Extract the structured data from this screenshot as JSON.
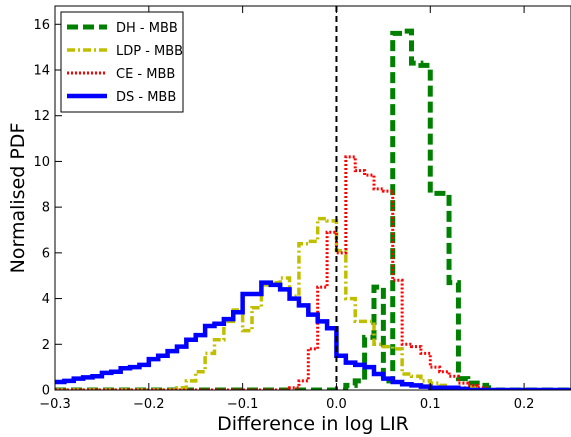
{
  "chart_data": {
    "type": "line",
    "step": true,
    "xlabel": "Difference in log LIR",
    "ylabel": "Normalised PDF",
    "xlim": [
      -0.3,
      0.25
    ],
    "ylim": [
      0,
      16.8
    ],
    "xticks": [
      -0.3,
      -0.2,
      -0.1,
      0.0,
      0.1,
      0.2
    ],
    "xtick_labels": [
      "−0.3",
      "−0.2",
      "−0.1",
      "0.0",
      "0.1",
      "0.2"
    ],
    "yticks": [
      0,
      2,
      4,
      6,
      8,
      10,
      12,
      14,
      16
    ],
    "grid": false,
    "legend_position": "top-left",
    "vline": {
      "x": 0.0,
      "color": "#000000",
      "style": "dashed"
    },
    "bins": {
      "start": -0.3,
      "width": 0.01,
      "count": 55
    },
    "series": [
      {
        "name": "DH - MBB",
        "color": "#008000",
        "style": "dashed",
        "values": [
          0,
          0,
          0,
          0,
          0,
          0,
          0,
          0,
          0,
          0,
          0,
          0,
          0,
          0,
          0,
          0,
          0,
          0,
          0,
          0,
          0,
          0,
          0,
          0,
          0,
          0,
          0,
          0,
          0,
          0,
          0,
          0.2,
          0.4,
          2.3,
          4.5,
          0.4,
          15.6,
          15.7,
          14.3,
          14.2,
          8.6,
          8.6,
          4.7,
          0.5,
          0.3,
          0.2,
          0.1,
          0,
          0,
          0,
          0,
          0,
          0,
          0,
          0
        ]
      },
      {
        "name": "LDP - MBB",
        "color": "#bfbf00",
        "style": "dashdot",
        "values": [
          0,
          0,
          0,
          0,
          0,
          0,
          0,
          0,
          0,
          0,
          0,
          0,
          0,
          0.1,
          0.4,
          0.8,
          1.6,
          2.2,
          3.0,
          3.5,
          2.6,
          3.6,
          4.6,
          4.7,
          4.9,
          4.1,
          6.4,
          6.5,
          7.5,
          7.4,
          6.1,
          4.0,
          3.0,
          3.0,
          2.0,
          1.9,
          1.8,
          0.7,
          0.6,
          0.4,
          0.3,
          0.2,
          0.1,
          0.1,
          0.1,
          0,
          0,
          0,
          0,
          0,
          0,
          0,
          0,
          0,
          0
        ]
      },
      {
        "name": "CE - MBB",
        "color": "#ff0000",
        "style": "dotted",
        "values": [
          0,
          0,
          0,
          0,
          0,
          0,
          0,
          0,
          0,
          0,
          0,
          0,
          0,
          0,
          0,
          0,
          0,
          0,
          0,
          0,
          0,
          0,
          0,
          0,
          0,
          0.1,
          0.4,
          1.8,
          4.5,
          6.9,
          6.0,
          10.2,
          9.6,
          9.4,
          8.8,
          8.7,
          4.8,
          2.0,
          1.9,
          1.6,
          1.0,
          0.8,
          0.6,
          0.3,
          0.2,
          0.1,
          0,
          0,
          0,
          0,
          0,
          0,
          0,
          0,
          0
        ]
      },
      {
        "name": "DS - MBB",
        "color": "#0000ff",
        "style": "solid",
        "values": [
          0.35,
          0.4,
          0.5,
          0.55,
          0.6,
          0.75,
          0.8,
          0.95,
          1.0,
          1.1,
          1.35,
          1.5,
          1.7,
          1.9,
          2.2,
          2.4,
          2.8,
          2.9,
          3.1,
          3.4,
          4.2,
          4.2,
          4.7,
          4.6,
          4.4,
          4.0,
          3.7,
          3.3,
          3.0,
          2.7,
          1.5,
          1.2,
          1.1,
          1.0,
          0.7,
          0.5,
          0.35,
          0.25,
          0.2,
          0.15,
          0.1,
          0.1,
          0.1,
          0.05,
          0,
          0,
          0,
          0,
          0,
          0,
          0,
          0,
          0,
          0,
          0
        ]
      }
    ]
  }
}
